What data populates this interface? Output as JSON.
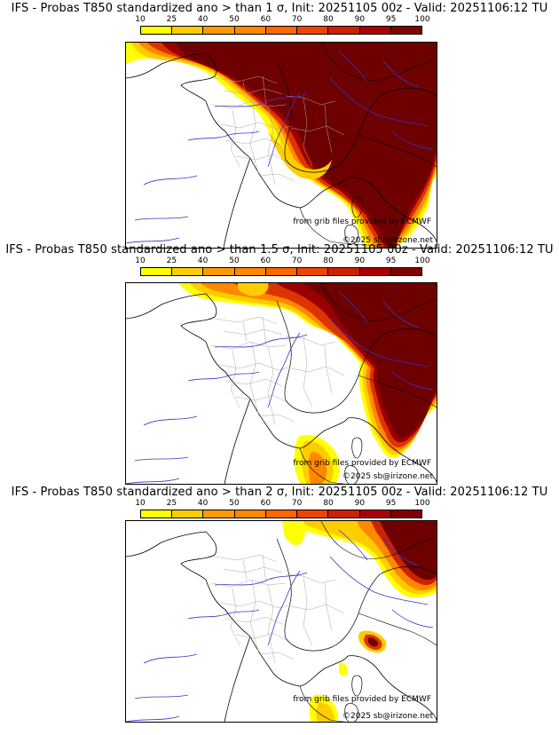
{
  "panels": [
    {
      "title": "IFS - Probas T850  standardized ano > than 1 σ, Init: 20251105 00z - Valid: 20251106:12 TU"
    },
    {
      "title": "IFS - Probas T850  standardized ano > than 1.5 σ, Init: 20251105 00z - Valid: 20251106:12 TU"
    },
    {
      "title": "IFS - Probas T850  standardized ano > than 2 σ, Init: 20251105 00z - Valid: 20251106:12 TU"
    }
  ],
  "colorbar": {
    "ticks": [
      "10",
      "25",
      "40",
      "50",
      "60",
      "70",
      "80",
      "90",
      "95",
      "100"
    ],
    "colors": [
      "#ffff00",
      "#ffcc00",
      "#ff9900",
      "#ff8800",
      "#ff6600",
      "#ee4400",
      "#cc2200",
      "#aa0000",
      "#800000"
    ]
  },
  "credits": {
    "source": "from grib files provided by ECMWF",
    "copyright": "©2025 sb@irizone.net"
  },
  "colors": {
    "probability_high": "#6e0000",
    "land_border": "#000000",
    "admin_border": "#a0a0a0",
    "river": "#3333cc"
  }
}
